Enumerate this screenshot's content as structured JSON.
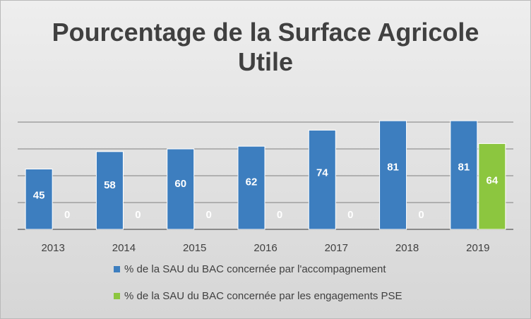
{
  "chart_data": {
    "type": "bar",
    "title_lines": [
      "Pourcentage de la Surface Agricole",
      "Utile"
    ],
    "categories": [
      "2013",
      "2014",
      "2015",
      "2016",
      "2017",
      "2018",
      "2019"
    ],
    "series": [
      {
        "name": "% de la SAU du BAC concernée par l'accompagnement",
        "color": "#3d7ebf",
        "values": [
          45,
          58,
          60,
          62,
          74,
          81,
          81
        ]
      },
      {
        "name": "% de la SAU du BAC concernée par les engagements PSE",
        "color": "#8cc63f",
        "values": [
          0,
          0,
          0,
          0,
          0,
          0,
          64
        ]
      }
    ],
    "ylim": [
      0,
      100
    ],
    "y_gridlines": [
      20,
      40,
      60,
      80
    ],
    "show_data_labels": true,
    "legend_position": "bottom",
    "xlabel": "",
    "ylabel": ""
  }
}
